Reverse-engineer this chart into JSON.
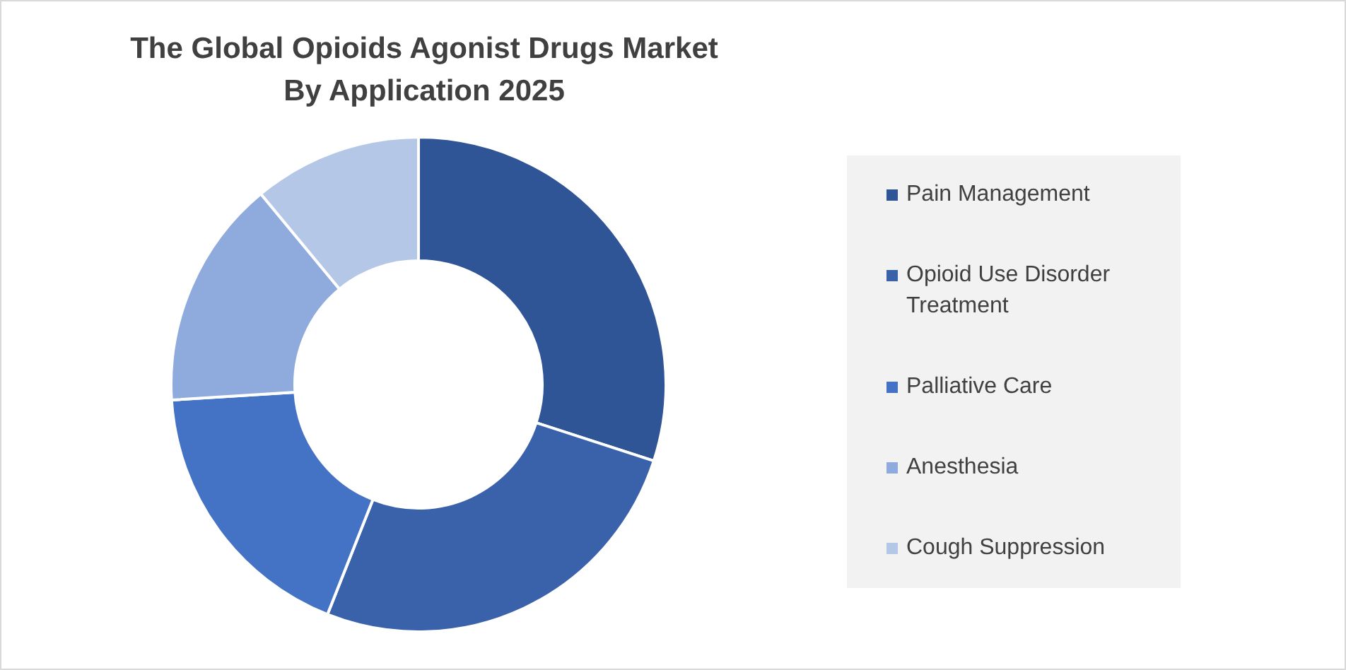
{
  "chart_data": {
    "type": "donut",
    "title": "The Global Opioids Agonist Drugs Market\nBy Application 2025",
    "categories": [
      "Pain Management",
      "Opioid Use Disorder Treatment",
      "Palliative Care",
      "Anesthesia",
      "Cough Suppression"
    ],
    "values": [
      30,
      26,
      18,
      15,
      11
    ],
    "colors": [
      "#2f5597",
      "#3a62ab",
      "#4472c4",
      "#8faadc",
      "#b4c7e7"
    ],
    "legend": "right"
  }
}
